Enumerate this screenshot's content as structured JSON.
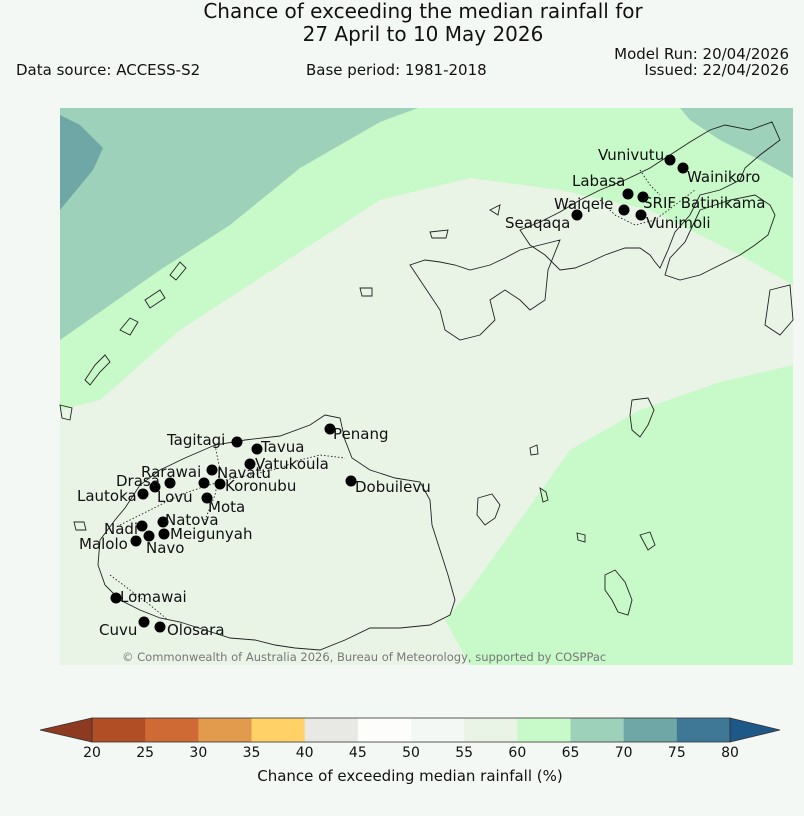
{
  "title": {
    "line1": "Chance of exceeding the median rainfall for",
    "line2": "27 April to 10 May 2026"
  },
  "info": {
    "data_source": "Data source: ACCESS-S2",
    "base_period": "Base period: 1981-2018",
    "model_run": "Model Run: 20/04/2026",
    "issued": "Issued: 22/04/2026"
  },
  "map": {
    "credit": "© Commonwealth of Australia 2026, Bureau of Meteorology, supported by COSPPac",
    "stations": [
      {
        "name": "Vunivutu"
      },
      {
        "name": "Wainikoro"
      },
      {
        "name": "Labasa"
      },
      {
        "name": "Waiqele"
      },
      {
        "name": "SRIF Batinikama"
      },
      {
        "name": "Seaqaqa"
      },
      {
        "name": "Vunimoli"
      },
      {
        "name": "Penang"
      },
      {
        "name": "Tagitagi"
      },
      {
        "name": "Tavua"
      },
      {
        "name": "Vatukoula"
      },
      {
        "name": "Rarawai"
      },
      {
        "name": "Navatu"
      },
      {
        "name": "Drasa"
      },
      {
        "name": "Koronubu"
      },
      {
        "name": "Lautoka"
      },
      {
        "name": "Lovu"
      },
      {
        "name": "Dobuilevu"
      },
      {
        "name": "Mota"
      },
      {
        "name": "Natova"
      },
      {
        "name": "Nadi"
      },
      {
        "name": "Meigunyah"
      },
      {
        "name": "Malolo"
      },
      {
        "name": "Navo"
      },
      {
        "name": "Lomawai"
      },
      {
        "name": "Cuvu"
      },
      {
        "name": "Olosara"
      }
    ]
  },
  "colorbar": {
    "title": "Chance of exceeding median rainfall (%)",
    "ticks": [
      "20",
      "25",
      "30",
      "35",
      "40",
      "45",
      "50",
      "55",
      "60",
      "65",
      "70",
      "75",
      "80"
    ],
    "colors": [
      "#b24e26",
      "#cf6a35",
      "#e29a4c",
      "#ffd166",
      "#e8e8e4",
      "#fdfdfb",
      "#f4f8f4",
      "#e9f4e7",
      "#c8f9c8",
      "#9dd1b9",
      "#6fa6a6",
      "#3f7896"
    ],
    "under_color": "#8e3a20",
    "over_color": "#1e5888"
  }
}
